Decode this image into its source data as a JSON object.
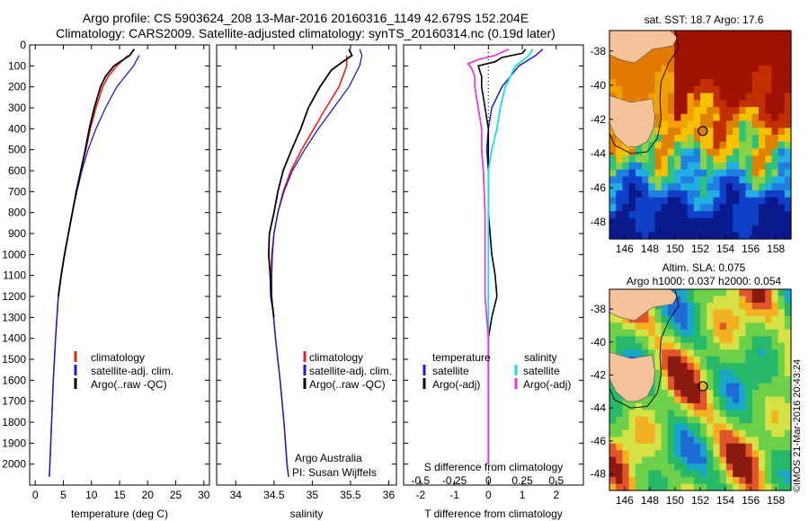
{
  "header": {
    "title1": "Argo profile: CS 5903624_208 13-Mar-2016 20160316_1149 42.679S 152.204E",
    "title2": "Climatology: CARS2009. Satellite-adjusted climatology: synTS_20160314.nc (0.19d later)"
  },
  "colors": {
    "climatology": "#e8221b",
    "satellite": "#1a1ad6",
    "argo": "#000000",
    "satellite_diff": "#19dede",
    "argo_diff": "#e23be3"
  },
  "chart_data": [
    {
      "type": "line",
      "id": "temperature",
      "xlabel": "temperature (deg C)",
      "ylabel": "",
      "xlim": [
        -1,
        31
      ],
      "ylim": [
        2100,
        0
      ],
      "xticks": [
        0,
        5,
        10,
        15,
        20,
        25,
        30
      ],
      "yticks": [
        0,
        100,
        200,
        300,
        400,
        500,
        600,
        700,
        800,
        900,
        1000,
        1100,
        1200,
        1300,
        1400,
        1500,
        1600,
        1700,
        1800,
        1900,
        2000
      ],
      "legend": [
        "climatology",
        "satellite-adj. clim.",
        "Argo(..raw -QC)"
      ],
      "series": [
        {
          "name": "climatology",
          "y": [
            50,
            100,
            150,
            200,
            300,
            400,
            500,
            600,
            700,
            800,
            900,
            1000,
            1100,
            1200,
            1400,
            1600,
            1800,
            2000,
            2060
          ],
          "x": [
            16.5,
            14.5,
            13.0,
            12.0,
            10.8,
            9.8,
            9.0,
            8.1,
            7.3,
            6.6,
            5.9,
            5.2,
            4.6,
            4.1,
            3.6,
            3.2,
            2.9,
            2.6,
            2.5
          ]
        },
        {
          "name": "satellite-adj. clim.",
          "y": [
            50,
            100,
            150,
            200,
            300,
            400,
            500,
            600,
            700,
            800,
            900,
            1000,
            1100,
            1200,
            1400,
            1600,
            1800,
            2000,
            2060
          ],
          "x": [
            18.5,
            17.5,
            16.0,
            14.5,
            12.5,
            10.8,
            9.4,
            8.3,
            7.4,
            6.6,
            5.9,
            5.2,
            4.6,
            4.1,
            3.6,
            3.2,
            2.9,
            2.6,
            2.5
          ]
        },
        {
          "name": "Argo(..raw -QC)",
          "y": [
            20,
            50,
            100,
            150,
            200,
            300,
            400,
            500,
            600,
            700,
            800,
            900,
            1000,
            1100,
            1200
          ],
          "x": [
            17.6,
            16.8,
            14.0,
            12.5,
            11.6,
            10.5,
            9.6,
            8.9,
            8.1,
            7.3,
            6.6,
            5.9,
            5.2,
            4.6,
            4.1
          ]
        }
      ]
    },
    {
      "type": "line",
      "id": "salinity",
      "xlabel": "salinity",
      "xlim": [
        33.75,
        36.1
      ],
      "ylim": [
        2100,
        0
      ],
      "xticks": [
        34,
        34.5,
        35,
        35.5,
        36
      ],
      "legend": [
        "climatology",
        "satellite-adj. clim.",
        "Argo(..raw -QC)"
      ],
      "annotations": [
        "Argo Australia",
        "PI: Susan Wijffels"
      ],
      "series": [
        {
          "name": "climatology",
          "y": [
            50,
            100,
            200,
            300,
            400,
            500,
            600,
            700,
            800,
            900,
            1000,
            1100,
            1200,
            1400,
            1600,
            1800,
            2000,
            2060
          ],
          "x": [
            35.45,
            35.45,
            35.35,
            35.18,
            35.02,
            34.86,
            34.72,
            34.62,
            34.55,
            34.5,
            34.47,
            34.46,
            34.47,
            34.52,
            34.58,
            34.63,
            34.67,
            34.69
          ]
        },
        {
          "name": "satellite-adj. clim.",
          "y": [
            20,
            50,
            100,
            200,
            300,
            400,
            500,
            600,
            700,
            800,
            900,
            1000,
            1100,
            1200,
            1400,
            1600,
            1800,
            2000,
            2060
          ],
          "x": [
            35.62,
            35.65,
            35.62,
            35.48,
            35.28,
            35.08,
            34.9,
            34.74,
            34.63,
            34.55,
            34.5,
            34.48,
            34.47,
            34.47,
            34.52,
            34.58,
            34.63,
            34.67,
            34.69
          ]
        },
        {
          "name": "Argo(..raw -QC)",
          "y": [
            20,
            50,
            80,
            120,
            200,
            300,
            400,
            500,
            600,
            700,
            800,
            900,
            1000,
            1100,
            1200,
            1300
          ],
          "x": [
            35.48,
            35.52,
            35.4,
            35.25,
            35.1,
            34.95,
            34.85,
            34.73,
            34.62,
            34.55,
            34.5,
            34.44,
            34.43,
            34.45,
            34.46,
            34.5
          ]
        }
      ]
    },
    {
      "type": "line",
      "id": "difference",
      "xlabel": "T difference from climatology",
      "xlabel_top": "S difference from climatology",
      "xlim": [
        -2.5,
        2.8
      ],
      "ylim": [
        2100,
        0
      ],
      "xticks": [
        -2,
        -1,
        0,
        1,
        2
      ],
      "xticks_s": [
        -0.5,
        -0.25,
        0,
        0.25,
        0.5
      ],
      "legend_left_title": "temperature",
      "legend_right_title": "salinity",
      "legend": [
        "satellite",
        "Argo(-adj)",
        "satellite",
        "Argo(-adj)"
      ],
      "series": [
        {
          "name": "T satellite",
          "y": [
            20,
            50,
            100,
            200,
            300,
            400,
            500,
            600,
            700,
            800,
            1000,
            1200,
            1500,
            1800,
            2000
          ],
          "x": [
            1.6,
            1.4,
            0.9,
            0.4,
            0.1,
            0.0,
            -0.05,
            0.0,
            0.0,
            0.0,
            0.0,
            0.0,
            0.0,
            0.0,
            0.0
          ]
        },
        {
          "name": "T Argo(-adj)",
          "y": [
            20,
            40,
            60,
            80,
            100,
            150,
            200,
            300,
            400,
            500,
            600,
            700,
            800,
            900,
            1000,
            1100,
            1200,
            1300,
            1400,
            1500,
            1600,
            1700,
            1800,
            1900,
            2000
          ],
          "x": [
            1.1,
            1.0,
            0.4,
            0.2,
            -0.3,
            -0.2,
            -0.2,
            -0.1,
            0.0,
            0.0,
            0.0,
            0.0,
            0.0,
            0.05,
            0.1,
            0.2,
            0.25,
            0.1,
            0.0,
            0.0,
            0.0,
            0.0,
            0.0,
            0.0,
            0.0
          ]
        },
        {
          "name": "S satellite",
          "y": [
            20,
            50,
            100,
            200,
            300,
            400,
            500,
            600,
            800,
            1000,
            1400,
            2000
          ],
          "x": [
            1.3,
            1.2,
            0.8,
            0.5,
            0.35,
            0.25,
            0.1,
            0.0,
            0.0,
            0.0,
            0.0,
            0.0
          ]
        },
        {
          "name": "S Argo(-adj)",
          "y": [
            20,
            50,
            70,
            90,
            110,
            150,
            200,
            300,
            400,
            500,
            600,
            800,
            1000,
            1200,
            1400,
            1600,
            1800,
            2000
          ],
          "x": [
            0.6,
            0.2,
            -0.3,
            -0.6,
            -0.5,
            -0.4,
            -0.4,
            -0.3,
            -0.2,
            -0.2,
            -0.15,
            -0.1,
            -0.1,
            -0.1,
            0.0,
            0.0,
            0.0,
            0.0
          ]
        }
      ]
    },
    {
      "type": "heatmap",
      "id": "sst-map",
      "title": "sat. SST: 18.7  Argo: 17.6",
      "xticks": [
        146,
        148,
        150,
        152,
        154,
        156,
        158
      ],
      "yticks": [
        -38,
        -40,
        -42,
        -44,
        -46,
        -48
      ],
      "xlim": [
        144.8,
        159.2
      ],
      "ylim": [
        -49,
        -36.8
      ],
      "argo_position": [
        152.2,
        -42.68
      ]
    },
    {
      "type": "heatmap",
      "id": "sla-map",
      "title": "Altim. SLA: 0.075",
      "subtitle": "Argo h1000: 0.037 h2000: 0.054",
      "xticks": [
        146,
        148,
        150,
        152,
        154,
        156,
        158
      ],
      "yticks": [
        -38,
        -40,
        -42,
        -44,
        -46,
        -48
      ],
      "xlim": [
        144.8,
        159.2
      ],
      "ylim": [
        -49,
        -36.8
      ],
      "argo_position": [
        152.2,
        -42.68
      ]
    }
  ],
  "footer": {
    "credit": "©IMOS 21-Mar-2016 20:43:24"
  }
}
